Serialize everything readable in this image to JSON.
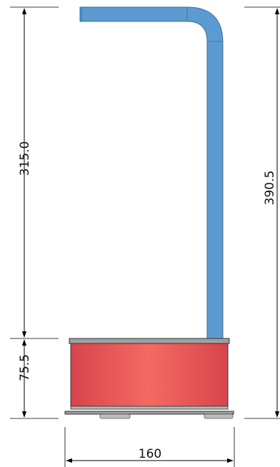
{
  "dimensions": {
    "tube_height": "315.0",
    "base_height": "75.5",
    "total_height": "390.5",
    "base_width": "160"
  },
  "colors": {
    "tube_fill": "#5c9bd1",
    "tube_stroke": "#3a6f9f",
    "base_edge": "#d8444c",
    "base_center": "#f46a62",
    "plate": "#a0a0a0",
    "line": "#000000"
  }
}
